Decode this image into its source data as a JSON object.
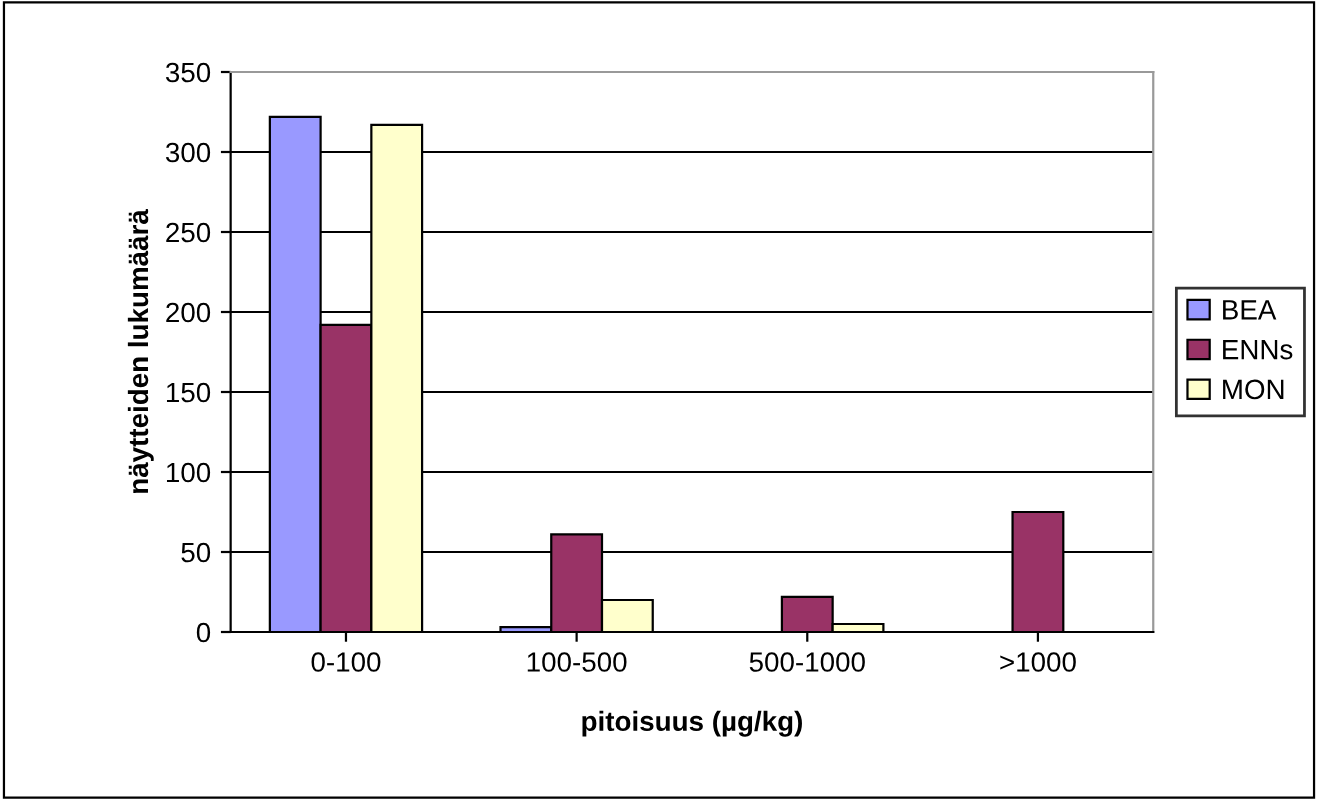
{
  "chart_data": {
    "type": "bar",
    "xlabel": "pitoisuus (µg/kg)",
    "ylabel": "näytteiden lukumäärä",
    "categories": [
      "0-100",
      "100-500",
      "500-1000",
      ">1000"
    ],
    "series": [
      {
        "name": "BEA",
        "color": "#9999ff",
        "values": [
          322,
          3,
          null,
          null
        ]
      },
      {
        "name": "ENNs",
        "color": "#993366",
        "values": [
          192,
          61,
          22,
          75
        ]
      },
      {
        "name": "MON",
        "color": "#ffffcc",
        "values": [
          317,
          20,
          5,
          null
        ]
      }
    ],
    "ylim": [
      0,
      350
    ],
    "yticks": [
      0,
      50,
      100,
      150,
      200,
      250,
      300,
      350
    ],
    "grid": "y",
    "legend": "right"
  }
}
